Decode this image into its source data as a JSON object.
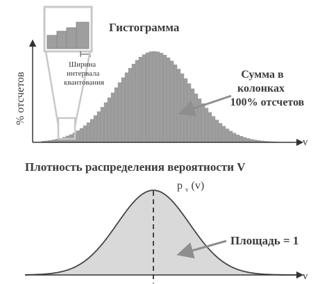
{
  "top_panel": {
    "title": "Гистограмма",
    "ylabel": "% отсчетов",
    "xaxis_label": "v",
    "inset_label_lines": [
      "Ширина",
      "интервала",
      "квантования"
    ],
    "sum_note_lines": [
      "Сумма в",
      "колонках",
      "100% отсчетов"
    ]
  },
  "bottom_panel": {
    "title": "Плотность распределения вероятности V",
    "pdf_label_main": "p",
    "pdf_label_sub": "v",
    "pdf_label_arg": "(v)",
    "area_label": "Площадь = 1",
    "xaxis_label": "v"
  },
  "colors": {
    "bars": "#9e9e9e",
    "bar_edge": "#8a8a8a",
    "axis": "#333333",
    "area_fill": "#d9d9d9",
    "curve": "#444444",
    "callout": "#c8c8c8",
    "arrow": "#8e8e8e",
    "text": "#3a3a3a"
  }
}
